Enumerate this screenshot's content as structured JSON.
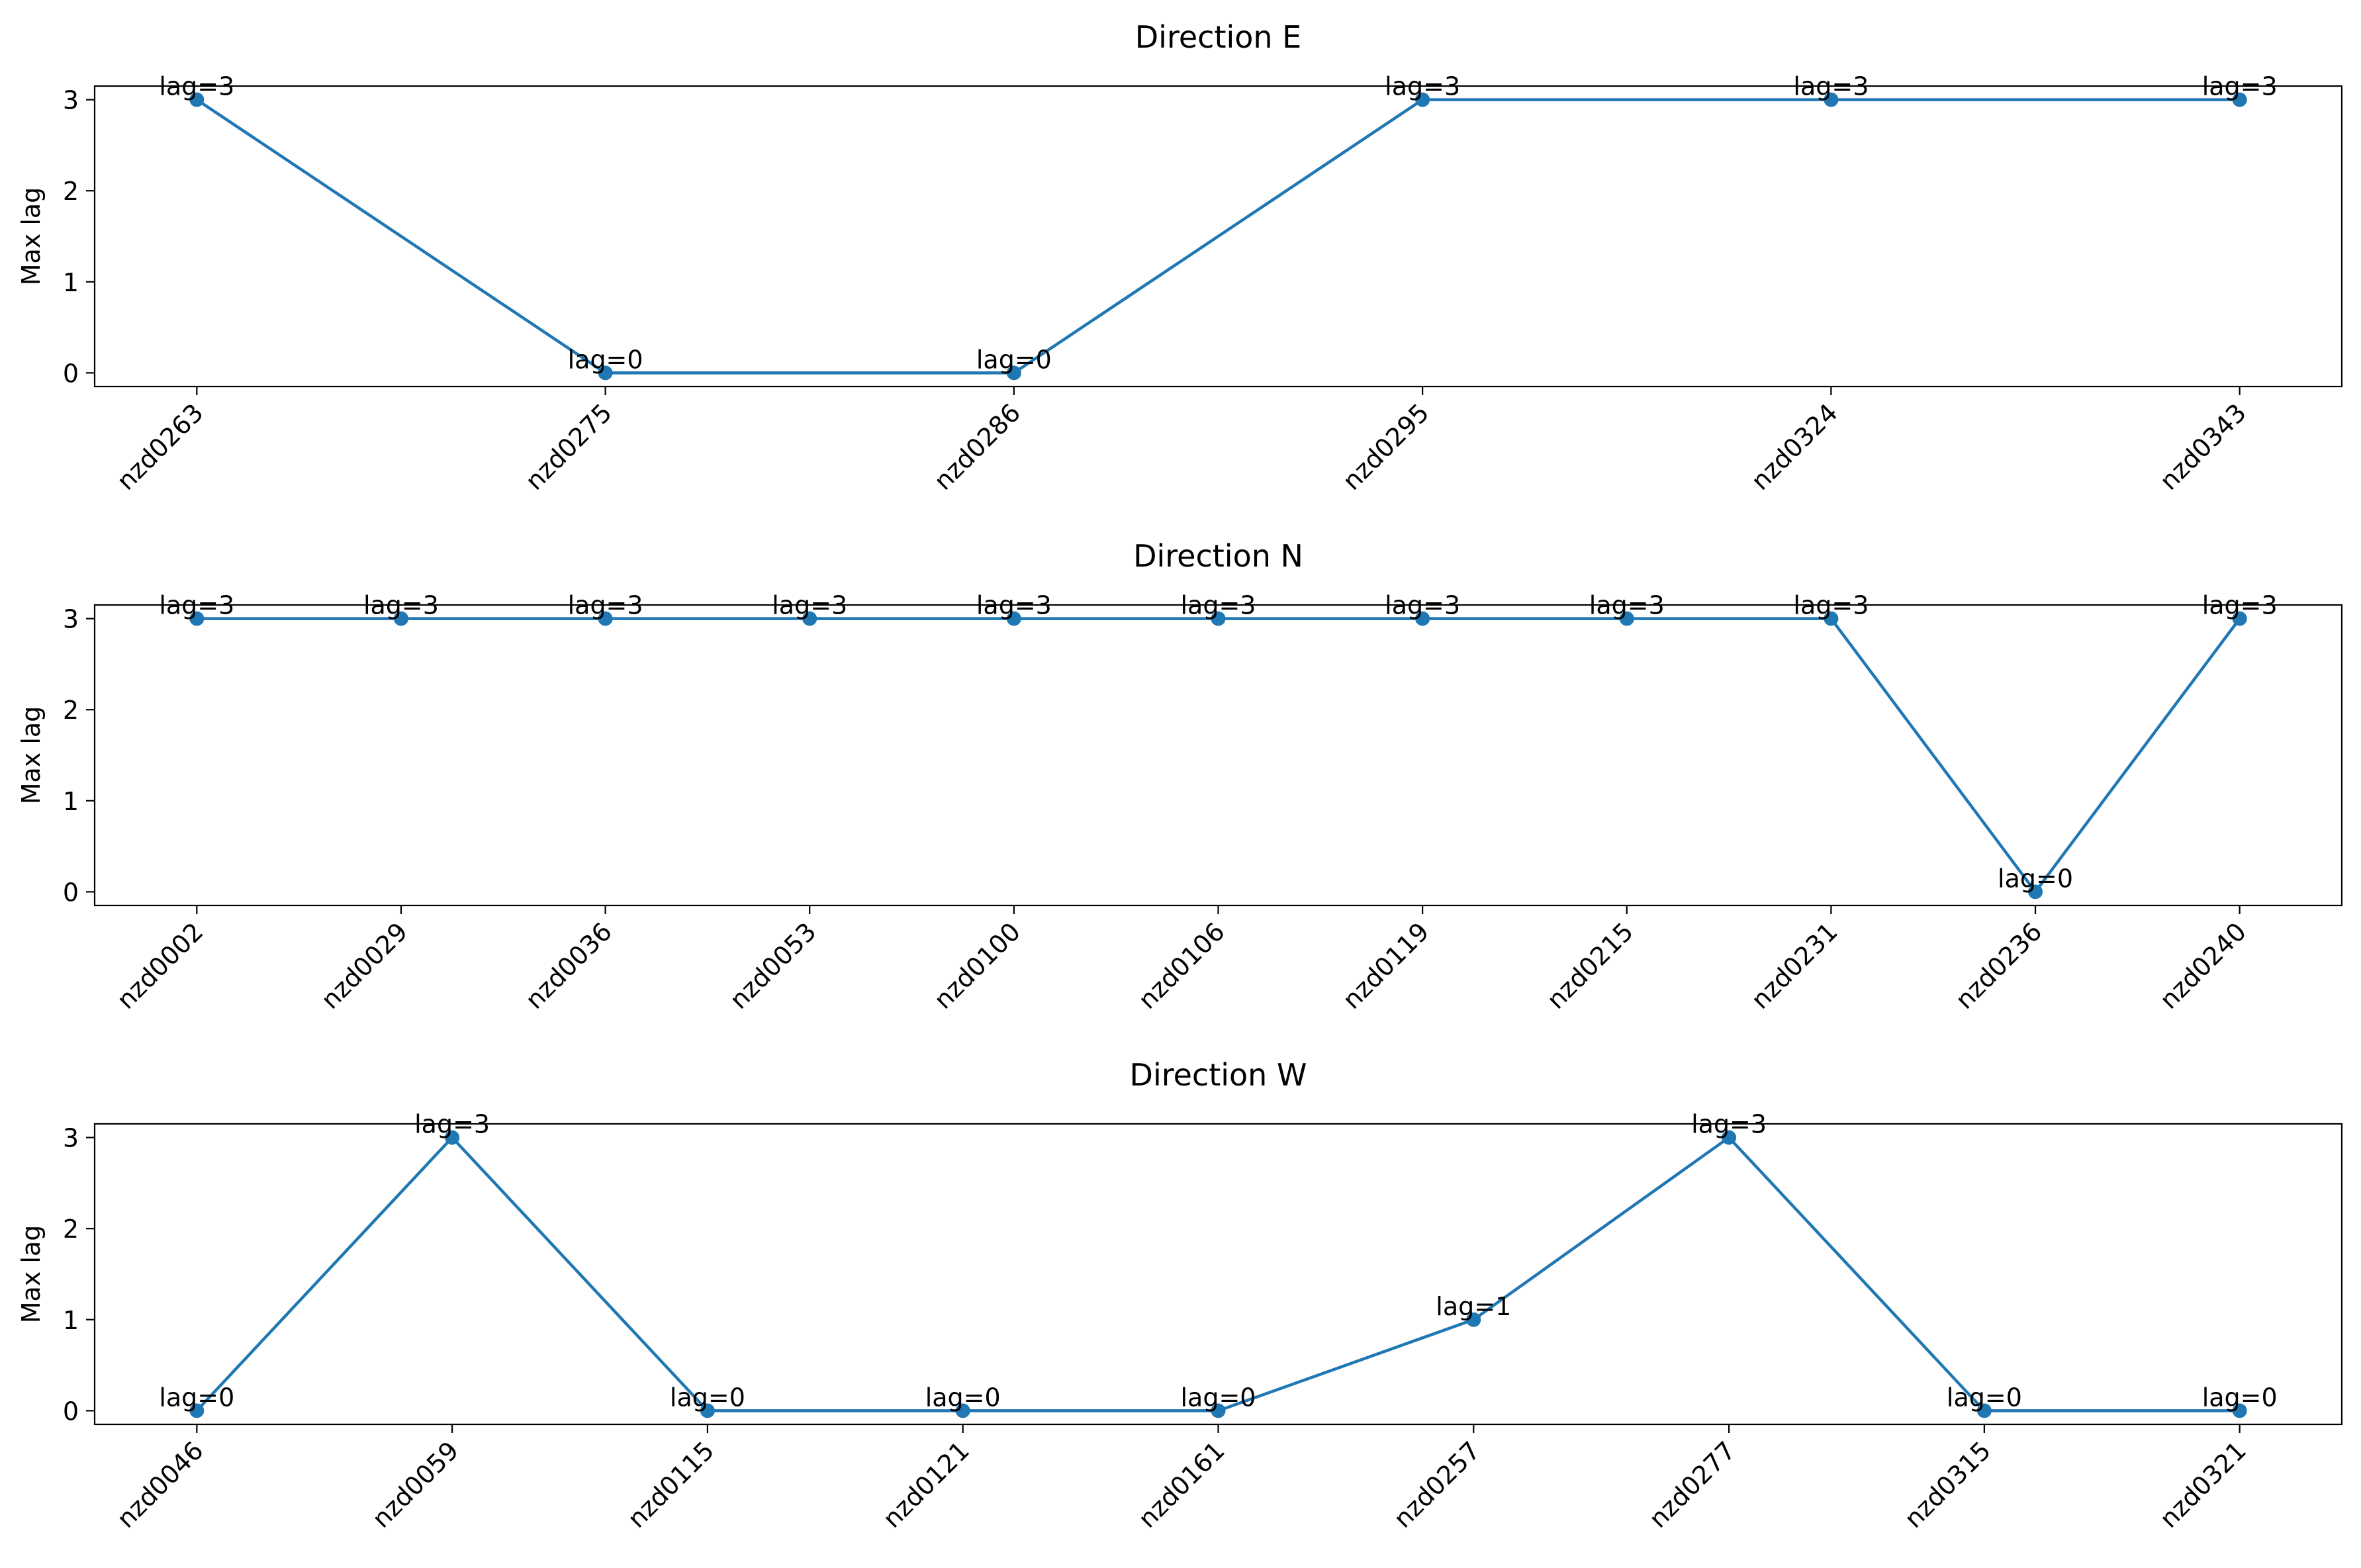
{
  "chart_data": [
    {
      "type": "line",
      "title": "Direction E",
      "xlabel": "",
      "ylabel": "Max lag",
      "ylim": [
        -0.15,
        3.15
      ],
      "yticks": [
        0,
        1,
        2,
        3
      ],
      "categories": [
        "nzd0263",
        "nzd0275",
        "nzd0286",
        "nzd0295",
        "nzd0324",
        "nzd0343"
      ],
      "values": [
        3,
        0,
        0,
        3,
        3,
        3
      ],
      "annotations": [
        "lag=3",
        "lag=0",
        "lag=0",
        "lag=3",
        "lag=3",
        "lag=3"
      ],
      "color": "#1f77b4",
      "grid": false
    },
    {
      "type": "line",
      "title": "Direction N",
      "xlabel": "",
      "ylabel": "Max lag",
      "ylim": [
        -0.15,
        3.15
      ],
      "yticks": [
        0,
        1,
        2,
        3
      ],
      "categories": [
        "nzd0002",
        "nzd0029",
        "nzd0036",
        "nzd0053",
        "nzd0100",
        "nzd0106",
        "nzd0119",
        "nzd0215",
        "nzd0231",
        "nzd0236",
        "nzd0240"
      ],
      "values": [
        3,
        3,
        3,
        3,
        3,
        3,
        3,
        3,
        3,
        0,
        3
      ],
      "annotations": [
        "lag=3",
        "lag=3",
        "lag=3",
        "lag=3",
        "lag=3",
        "lag=3",
        "lag=3",
        "lag=3",
        "lag=3",
        "lag=0",
        "lag=3"
      ],
      "color": "#1f77b4",
      "grid": false
    },
    {
      "type": "line",
      "title": "Direction W",
      "xlabel": "",
      "ylabel": "Max lag",
      "ylim": [
        -0.15,
        3.15
      ],
      "yticks": [
        0,
        1,
        2,
        3
      ],
      "categories": [
        "nzd0046",
        "nzd0059",
        "nzd0115",
        "nzd0121",
        "nzd0161",
        "nzd0257",
        "nzd0277",
        "nzd0315",
        "nzd0321"
      ],
      "values": [
        0,
        3,
        0,
        0,
        0,
        1,
        3,
        0,
        0
      ],
      "annotations": [
        "lag=0",
        "lag=3",
        "lag=0",
        "lag=0",
        "lag=0",
        "lag=1",
        "lag=3",
        "lag=0",
        "lag=0"
      ],
      "color": "#1f77b4",
      "grid": false
    }
  ]
}
